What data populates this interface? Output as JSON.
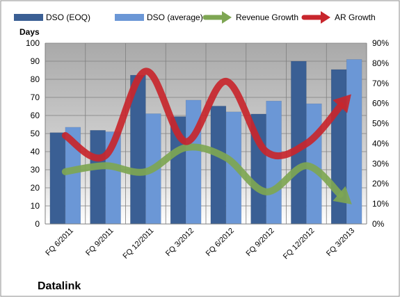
{
  "chart_data": {
    "type": "bar",
    "title": "Datalink",
    "ylabel": "Days",
    "categories": [
      "FQ 6/2011",
      "FQ 9/2011",
      "FQ 12/2011",
      "FQ 3/2012",
      "FQ 6/2012",
      "FQ 9/2012",
      "FQ 12/2012",
      "FQ 3/2013"
    ],
    "ylim": [
      0,
      100
    ],
    "y_ticks": [
      0,
      10,
      20,
      30,
      40,
      50,
      60,
      70,
      80,
      90,
      100
    ],
    "y2lim": [
      0,
      0.9
    ],
    "y2_ticks": [
      "0%",
      "10%",
      "20%",
      "30%",
      "40%",
      "50%",
      "60%",
      "70%",
      "80%",
      "90%"
    ],
    "grid": true,
    "legend_position": "top",
    "series": [
      {
        "name": "DSO (EOQ)",
        "type": "bar",
        "axis": "left",
        "color": "#3a5f94",
        "values": [
          50.5,
          51.8,
          82.3,
          59.4,
          65.2,
          60.8,
          90.0,
          85.4
        ]
      },
      {
        "name": "DSO (average)",
        "type": "bar",
        "axis": "left",
        "color": "#6b97d6",
        "values": [
          53.5,
          51.0,
          61.0,
          68.5,
          62.0,
          68.0,
          66.5,
          91.0
        ]
      },
      {
        "name": "Revenue Growth",
        "type": "line",
        "axis": "right",
        "color": "#7ea653",
        "values": [
          0.26,
          0.29,
          0.26,
          0.38,
          0.33,
          0.16,
          0.29,
          0.12
        ]
      },
      {
        "name": "AR Growth",
        "type": "line",
        "axis": "right",
        "color": "#c8262d",
        "values": [
          0.44,
          0.34,
          0.76,
          0.41,
          0.71,
          0.36,
          0.4,
          0.62
        ]
      }
    ]
  }
}
